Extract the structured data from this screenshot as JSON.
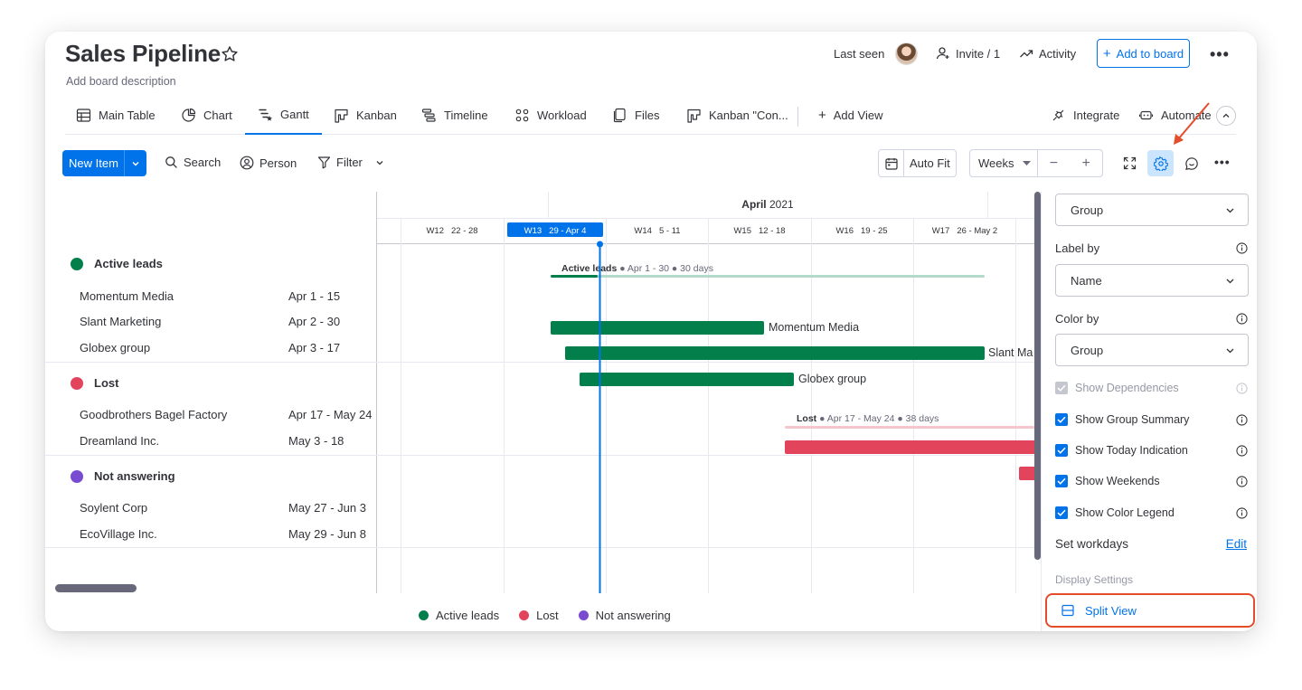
{
  "board": {
    "title": "Sales Pipeline",
    "description": "Add board description"
  },
  "header": {
    "last_seen": "Last seen",
    "invite": "Invite / 1",
    "activity": "Activity",
    "add_to_board": "Add to board"
  },
  "tabs": [
    {
      "label": "Main Table",
      "icon": "table-icon"
    },
    {
      "label": "Chart",
      "icon": "chart-icon"
    },
    {
      "label": "Gantt",
      "icon": "gantt-icon",
      "active": true
    },
    {
      "label": "Kanban",
      "icon": "kanban-icon"
    },
    {
      "label": "Timeline",
      "icon": "timeline-icon"
    },
    {
      "label": "Workload",
      "icon": "workload-icon"
    },
    {
      "label": "Files",
      "icon": "files-icon"
    },
    {
      "label": "Kanban \"Con...",
      "icon": "kanban-icon"
    },
    {
      "label": "Add View",
      "icon": "plus-icon"
    }
  ],
  "tab_right": {
    "integrate": "Integrate",
    "automate": "Automate"
  },
  "toolbar": {
    "new_item": "New Item",
    "search": "Search",
    "person": "Person",
    "filter": "Filter",
    "auto_fit": "Auto Fit",
    "scale": "Weeks",
    "zoom_out": "−",
    "zoom_in": "+"
  },
  "timeline": {
    "month": "April",
    "year": "2021",
    "weeks": [
      {
        "code": "W12",
        "range": "22 - 28"
      },
      {
        "code": "W13",
        "range": "29 - Apr 4",
        "current": true
      },
      {
        "code": "W14",
        "range": "5 - 11"
      },
      {
        "code": "W15",
        "range": "12 - 18"
      },
      {
        "code": "W16",
        "range": "19 - 25"
      },
      {
        "code": "W17",
        "range": "26 - May 2"
      }
    ]
  },
  "groups": [
    {
      "name": "Active leads",
      "color": "#037f4c",
      "summary_name": "Active leads",
      "summary_detail": " ● Apr 1 - 30 ● 30 days",
      "items": [
        {
          "name": "Momentum Media",
          "dates": "Apr 1 - 15"
        },
        {
          "name": "Slant Marketing",
          "dates": "Apr 2 - 30"
        },
        {
          "name": "Globex group",
          "dates": "Apr 3 - 17"
        }
      ]
    },
    {
      "name": "Lost",
      "color": "#e2445c",
      "summary_name": "Lost",
      "summary_detail": " ● Apr 17 - May 24 ● 38 days",
      "items": [
        {
          "name": "Goodbrothers Bagel Factory",
          "dates": "Apr 17 - May 24"
        },
        {
          "name": "Dreamland Inc.",
          "dates": "May 3 - 18"
        }
      ]
    },
    {
      "name": "Not answering",
      "color": "#784bd1",
      "items": [
        {
          "name": "Soylent Corp",
          "dates": "May 27 - Jun 3"
        },
        {
          "name": "EcoVillage Inc.",
          "dates": "May 29 - Jun 8"
        }
      ]
    }
  ],
  "bar_labels": {
    "momentum": "Momentum Media",
    "slant": "Slant Ma",
    "globex": "Globex group"
  },
  "legend": [
    "Active leads",
    "Lost",
    "Not answering"
  ],
  "settings": {
    "group_by_value": "Group",
    "label_by": "Label by",
    "label_by_value": "Name",
    "color_by": "Color by",
    "color_by_value": "Group",
    "options": [
      {
        "label": "Show Dependencies",
        "checked": true,
        "disabled": true
      },
      {
        "label": "Show Group Summary",
        "checked": true
      },
      {
        "label": "Show Today Indication",
        "checked": true
      },
      {
        "label": "Show Weekends",
        "checked": true
      },
      {
        "label": "Show Color Legend",
        "checked": true
      }
    ],
    "set_workdays": "Set workdays",
    "edit": "Edit",
    "display_settings": "Display Settings",
    "split_view": "Split View"
  },
  "colors": {
    "accent": "#0073ea",
    "active": "#037f4c",
    "active_light": "#b3dacb",
    "lost": "#e2445c",
    "lost_light": "#f6c6cd",
    "not_answering": "#784bd1",
    "annotation": "#e44c2c"
  }
}
